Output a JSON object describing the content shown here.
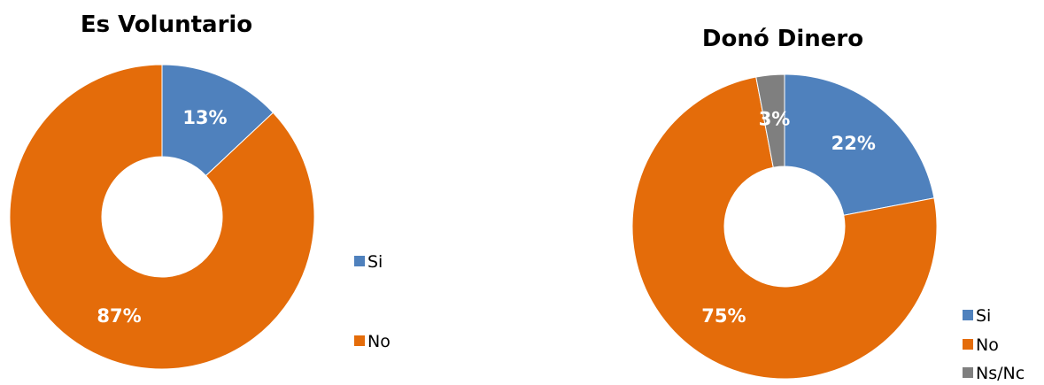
{
  "chart_data": [
    {
      "type": "pie",
      "title": "Es Voluntario",
      "categories": [
        "Si",
        "No"
      ],
      "values": [
        13,
        87
      ],
      "labels": [
        "13%",
        "87%"
      ],
      "colors": [
        "#4F81BD",
        "#E46C0A"
      ],
      "legend": "right",
      "donut": true
    },
    {
      "type": "pie",
      "title": "Donó Dinero",
      "categories": [
        "Si",
        "No",
        "Ns/Nc"
      ],
      "values": [
        22,
        75,
        3
      ],
      "labels": [
        "22%",
        "75%",
        "3%"
      ],
      "colors": [
        "#4F81BD",
        "#E46C0A",
        "#7F7F7F"
      ],
      "legend": "right",
      "donut": true
    }
  ]
}
